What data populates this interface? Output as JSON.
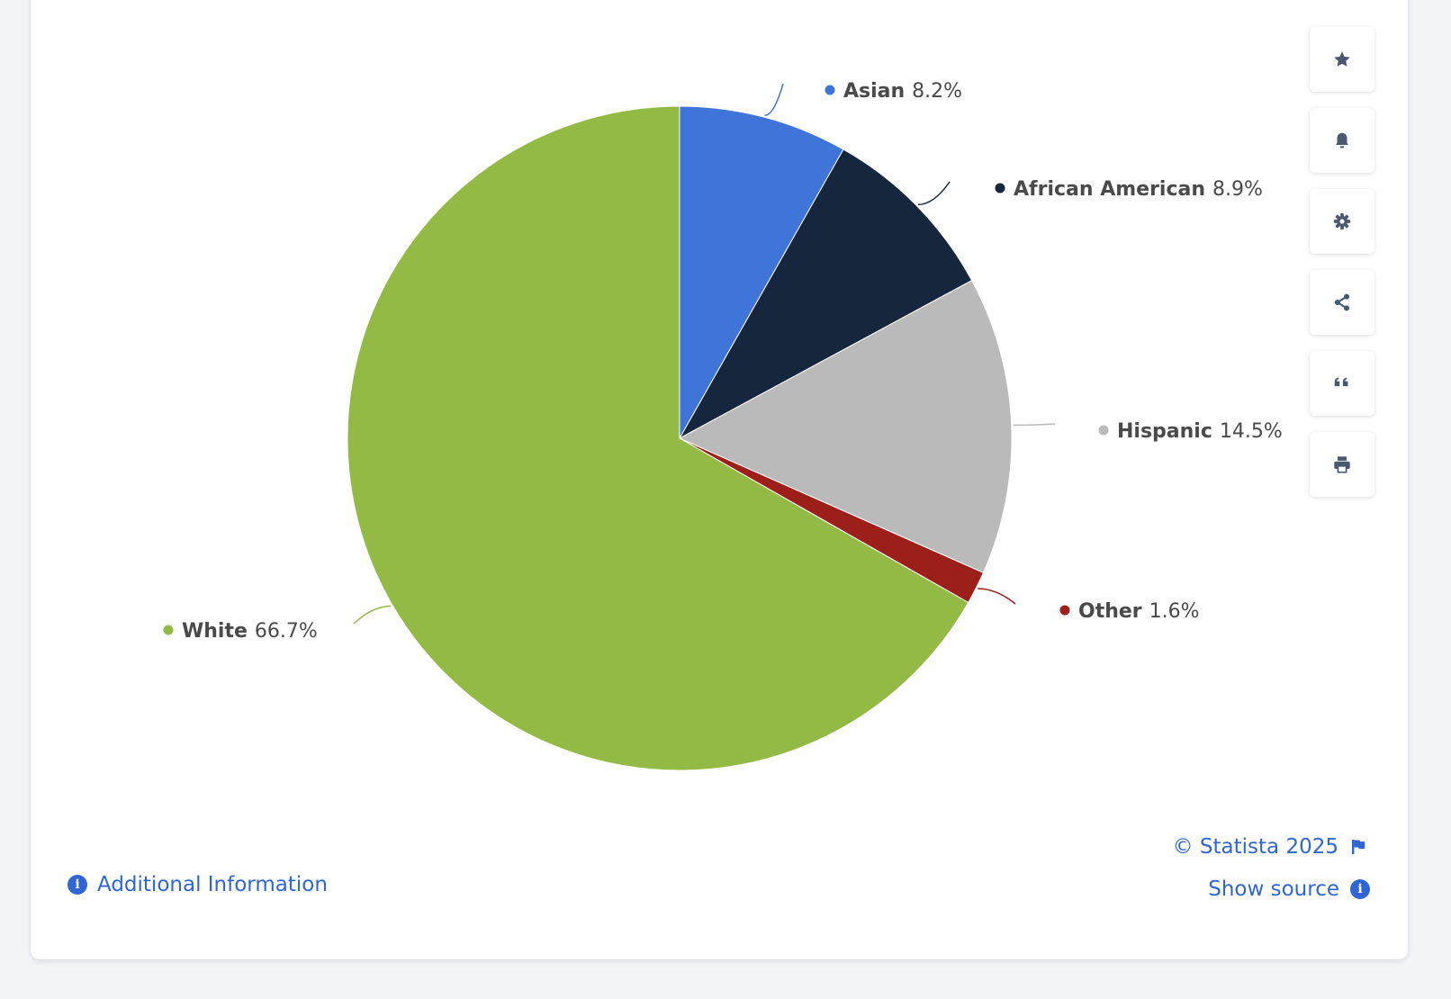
{
  "chart_data": {
    "type": "pie",
    "slices": [
      {
        "label": "Asian",
        "value": 8.2,
        "value_label": "8.2%",
        "color": "#3f74d9"
      },
      {
        "label": "African American",
        "value": 8.9,
        "value_label": "8.9%",
        "color": "#15263d"
      },
      {
        "label": "Hispanic",
        "value": 14.5,
        "value_label": "14.5%",
        "color": "#bababa"
      },
      {
        "label": "Other",
        "value": 1.6,
        "value_label": "1.6%",
        "color": "#9c1f1a"
      },
      {
        "label": "White",
        "value": 66.7,
        "value_label": "66.7%",
        "color": "#93ba45"
      }
    ]
  },
  "footer": {
    "additional_info": "Additional Information",
    "copyright": "© Statista 2025",
    "show_source": "Show source"
  },
  "toolbar": {
    "icons": [
      "star-icon",
      "bell-icon",
      "gear-icon",
      "share-icon",
      "quote-icon",
      "print-icon"
    ]
  },
  "colors": {
    "link": "#2f66d4",
    "icon": "#4a5870"
  }
}
